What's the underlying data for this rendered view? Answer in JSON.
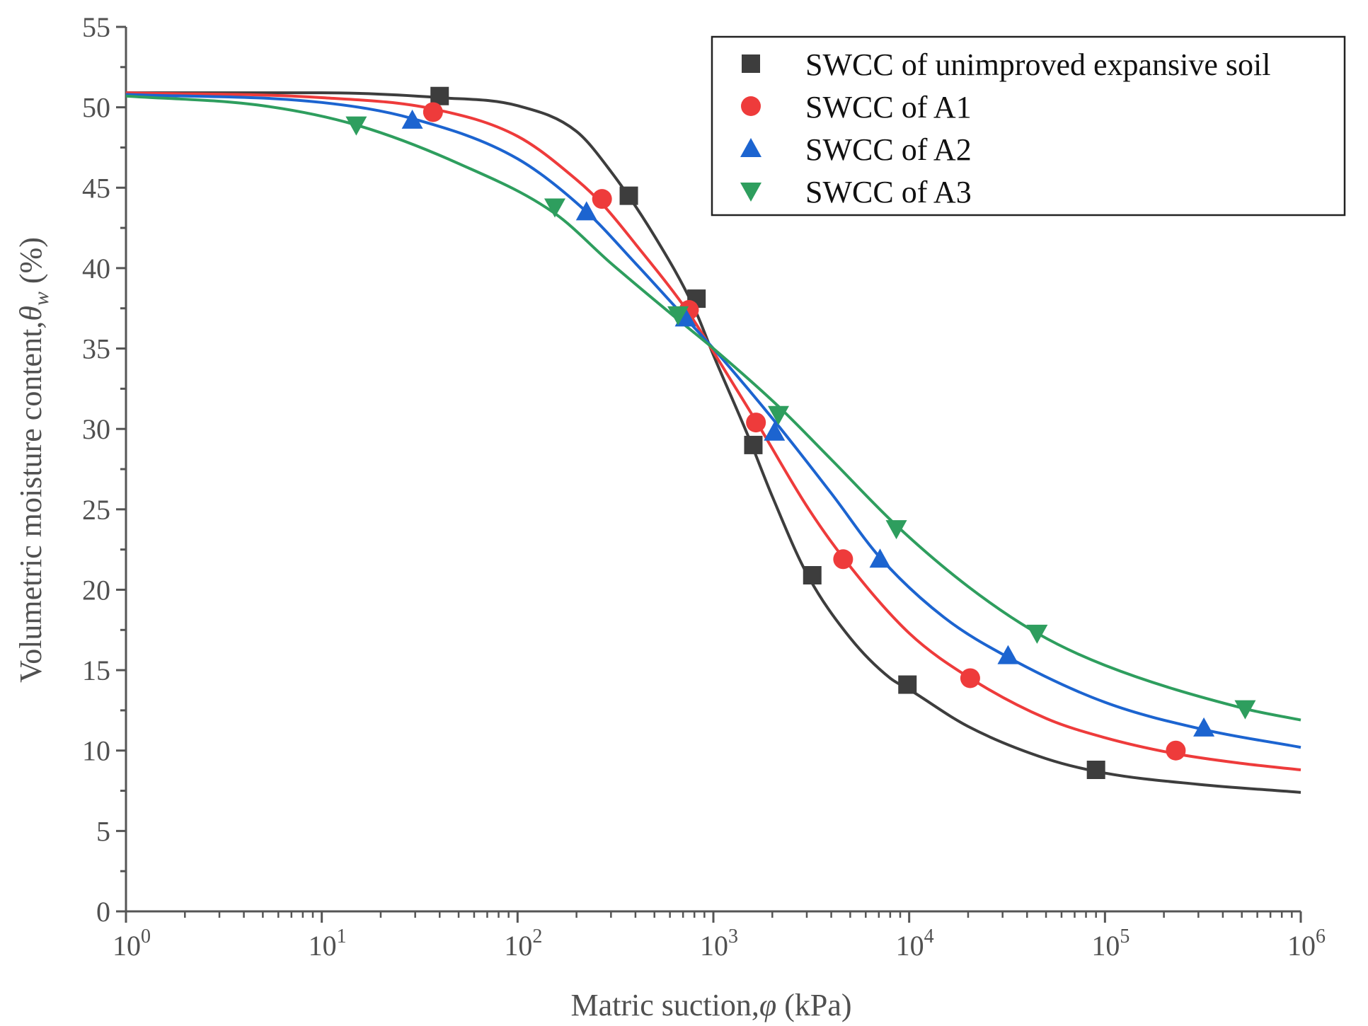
{
  "chart_data": {
    "type": "scatter",
    "xscale": "log",
    "xlim": [
      1,
      1000000
    ],
    "ylim": [
      0,
      55
    ],
    "grid": false,
    "legend_position": "top-right",
    "xlabel": {
      "prefix": "Matric suction,",
      "symbol": "φ",
      "suffix": " (kPa)"
    },
    "ylabel": {
      "prefix": "Volumetric moisture content,",
      "symbol": "θ",
      "subscript": "w",
      "suffix": " (%)"
    },
    "x_ticks": [
      {
        "base": "10",
        "exp": "0"
      },
      {
        "base": "10",
        "exp": "1"
      },
      {
        "base": "10",
        "exp": "2"
      },
      {
        "base": "10",
        "exp": "3"
      },
      {
        "base": "10",
        "exp": "4"
      },
      {
        "base": "10",
        "exp": "5"
      },
      {
        "base": "10",
        "exp": "6"
      }
    ],
    "y_ticks": [
      "0",
      "5",
      "10",
      "15",
      "20",
      "25",
      "30",
      "35",
      "40",
      "45",
      "50",
      "55"
    ],
    "series": [
      {
        "name": "SWCC of unimproved expansive soil",
        "marker": "square",
        "color": "#3d3d3d",
        "points": [
          [
            40,
            50.7
          ],
          [
            370,
            44.5
          ],
          [
            820,
            38.1
          ],
          [
            1600,
            29.0
          ],
          [
            3200,
            20.9
          ],
          [
            9800,
            14.1
          ],
          [
            90000,
            8.8
          ]
        ],
        "curve": [
          [
            1,
            50.9
          ],
          [
            10,
            50.9
          ],
          [
            40,
            50.6
          ],
          [
            100,
            50.1
          ],
          [
            200,
            48.5
          ],
          [
            300,
            46.0
          ],
          [
            500,
            42.0
          ],
          [
            800,
            37.5
          ],
          [
            1000,
            34.6
          ],
          [
            1500,
            29.6
          ],
          [
            2000,
            25.8
          ],
          [
            3000,
            21.0
          ],
          [
            5000,
            17.0
          ],
          [
            8000,
            14.5
          ],
          [
            10000,
            13.8
          ],
          [
            20000,
            11.5
          ],
          [
            50000,
            9.5
          ],
          [
            100000,
            8.6
          ],
          [
            300000,
            7.9
          ],
          [
            1000000,
            7.4
          ]
        ]
      },
      {
        "name": "SWCC of A1",
        "marker": "circle",
        "color": "#ee3b3b",
        "points": [
          [
            37,
            49.7
          ],
          [
            270,
            44.3
          ],
          [
            750,
            37.4
          ],
          [
            1650,
            30.4
          ],
          [
            4600,
            21.9
          ],
          [
            20500,
            14.5
          ],
          [
            230000,
            10.0
          ]
        ],
        "curve": [
          [
            1,
            50.9
          ],
          [
            10,
            50.6
          ],
          [
            37,
            49.9
          ],
          [
            100,
            48.2
          ],
          [
            200,
            45.5
          ],
          [
            270,
            44.0
          ],
          [
            400,
            41.5
          ],
          [
            750,
            37.2
          ],
          [
            1000,
            34.8
          ],
          [
            1650,
            30.5
          ],
          [
            3000,
            25.2
          ],
          [
            4600,
            22.0
          ],
          [
            10000,
            17.3
          ],
          [
            20500,
            14.5
          ],
          [
            50000,
            12.0
          ],
          [
            100000,
            10.8
          ],
          [
            230000,
            9.8
          ],
          [
            500000,
            9.2
          ],
          [
            1000000,
            8.8
          ]
        ]
      },
      {
        "name": "SWCC of A2",
        "marker": "triangle-up",
        "color": "#1c64d0",
        "points": [
          [
            29,
            49.2
          ],
          [
            225,
            43.5
          ],
          [
            720,
            36.9
          ],
          [
            2050,
            29.8
          ],
          [
            7100,
            21.9
          ],
          [
            32000,
            15.9
          ],
          [
            320000,
            11.4
          ]
        ],
        "curve": [
          [
            1,
            50.8
          ],
          [
            10,
            50.3
          ],
          [
            29,
            49.3
          ],
          [
            100,
            46.8
          ],
          [
            225,
            43.5
          ],
          [
            400,
            40.3
          ],
          [
            720,
            36.9
          ],
          [
            1000,
            35.0
          ],
          [
            2050,
            30.5
          ],
          [
            4000,
            26.0
          ],
          [
            7100,
            22.0
          ],
          [
            15000,
            18.3
          ],
          [
            32000,
            15.8
          ],
          [
            100000,
            13.0
          ],
          [
            320000,
            11.3
          ],
          [
            1000000,
            10.2
          ]
        ]
      },
      {
        "name": "SWCC of A3",
        "marker": "triangle-down",
        "color": "#2e9e5e",
        "points": [
          [
            15,
            48.9
          ],
          [
            155,
            43.8
          ],
          [
            660,
            37.1
          ],
          [
            2150,
            30.9
          ],
          [
            8600,
            23.8
          ],
          [
            45000,
            17.3
          ],
          [
            520000,
            12.6
          ]
        ],
        "curve": [
          [
            1,
            50.7
          ],
          [
            5,
            50.1
          ],
          [
            15,
            48.9
          ],
          [
            50,
            46.5
          ],
          [
            155,
            43.4
          ],
          [
            300,
            40.3
          ],
          [
            660,
            36.8
          ],
          [
            1000,
            35.0
          ],
          [
            2150,
            31.4
          ],
          [
            4000,
            28.1
          ],
          [
            8600,
            24.0
          ],
          [
            20000,
            20.2
          ],
          [
            45000,
            17.3
          ],
          [
            100000,
            15.3
          ],
          [
            520000,
            12.6
          ],
          [
            1000000,
            11.9
          ]
        ]
      }
    ]
  }
}
